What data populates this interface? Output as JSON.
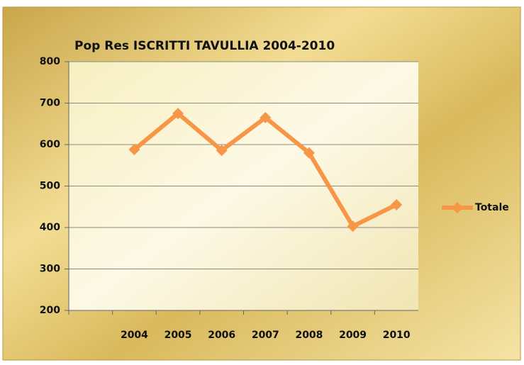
{
  "chart_data": {
    "type": "line",
    "title": "Pop Res  ISCRITTI  TAVULLIA 2004-2010",
    "categories": [
      null,
      "2004",
      "2005",
      "2006",
      "2007",
      "2008",
      "2009",
      "2010"
    ],
    "series": [
      {
        "name": "Totale",
        "color": "#f79646",
        "values": [
          null,
          588,
          675,
          586,
          665,
          580,
          403,
          455
        ]
      }
    ],
    "ylim": [
      200,
      800
    ],
    "yticks": [
      200,
      300,
      400,
      500,
      600,
      700,
      800
    ],
    "grid": true,
    "legend": "right"
  }
}
